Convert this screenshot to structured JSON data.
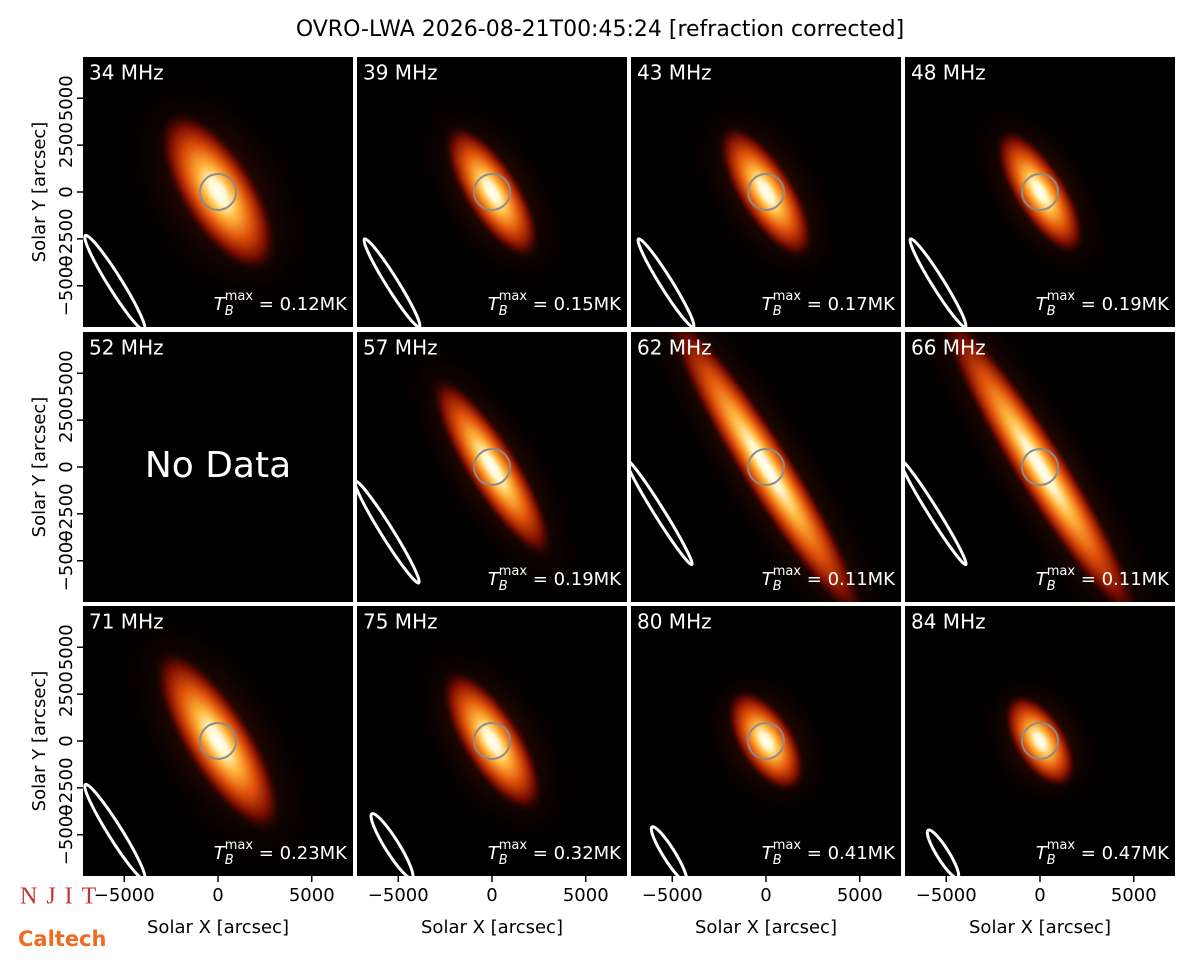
{
  "chart_data": {
    "type": "image",
    "title": "OVRO-LWA 2026-08-21T00:45:24 [refraction corrected]",
    "categories": [
      "34 MHz",
      "39 MHz",
      "43 MHz",
      "48 MHz",
      "52 MHz",
      "57 MHz",
      "62 MHz",
      "66 MHz",
      "71 MHz",
      "75 MHz",
      "80 MHz",
      "84 MHz"
    ],
    "values": [
      0.12,
      0.15,
      0.17,
      0.19,
      null,
      0.19,
      0.11,
      0.11,
      0.23,
      0.32,
      0.41,
      0.47
    ],
    "value_labels": [
      "0.12MK",
      "0.15MK",
      "0.17MK",
      "0.19MK",
      null,
      "0.19MK",
      "0.11MK",
      "0.11MK",
      "0.23MK",
      "0.32MK",
      "0.41MK",
      "0.47MK"
    ],
    "tmax_symbol": {
      "base": "T",
      "sub": "B",
      "sup": "max",
      "equals": " = "
    },
    "missing_label": "No Data",
    "xlabel": "Solar X [arcsec]",
    "ylabel": "Solar Y [arcsec]",
    "xlim": [
      -7200,
      7200
    ],
    "ylim": [
      -7200,
      7200
    ],
    "xticks": [
      {
        "value": -5000,
        "label": "−5000"
      },
      0,
      5000
    ],
    "yticks": [
      {
        "value": -5000,
        "label": "−5000"
      },
      {
        "value": -2500,
        "label": "−2500"
      },
      0,
      2500,
      5000
    ]
  },
  "logos": {
    "njit": "NJIT",
    "caltech": "Caltech"
  }
}
